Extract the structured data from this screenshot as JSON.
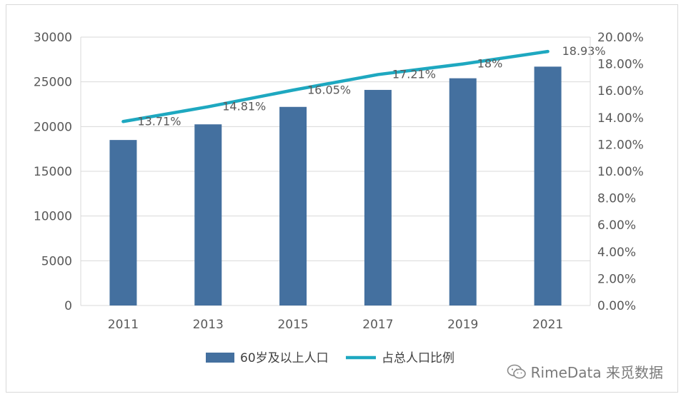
{
  "chart_data": {
    "type": "bar",
    "categories": [
      "2011",
      "2013",
      "2015",
      "2017",
      "2019",
      "2021"
    ],
    "series": [
      {
        "name": "60岁及以上人口",
        "type": "bar",
        "axis": "left",
        "values": [
          18500,
          20250,
          22200,
          24100,
          25400,
          26700
        ],
        "color": "#44709f"
      },
      {
        "name": "占总人口比例",
        "type": "line",
        "axis": "right",
        "values": [
          13.71,
          14.81,
          16.05,
          17.21,
          18.0,
          18.93
        ],
        "labels": [
          "13.71%",
          "14.81%",
          "16.05%",
          "17.21%",
          "18%",
          "18.93%"
        ],
        "color": "#1ea8c0"
      }
    ],
    "y_left": {
      "ylim": [
        0,
        30000
      ],
      "ticks": [
        "0",
        "5000",
        "10000",
        "15000",
        "20000",
        "25000",
        "30000"
      ]
    },
    "y_right": {
      "ylim": [
        0,
        20
      ],
      "ticks": [
        "0.00%",
        "2.00%",
        "4.00%",
        "6.00%",
        "8.00%",
        "10.00%",
        "12.00%",
        "14.00%",
        "16.00%",
        "18.00%",
        "20.00%"
      ]
    },
    "grid": true,
    "legend_position": "bottom-center"
  },
  "watermark": {
    "text": "RimeData 来觅数据",
    "icon": "wechat-icon"
  }
}
